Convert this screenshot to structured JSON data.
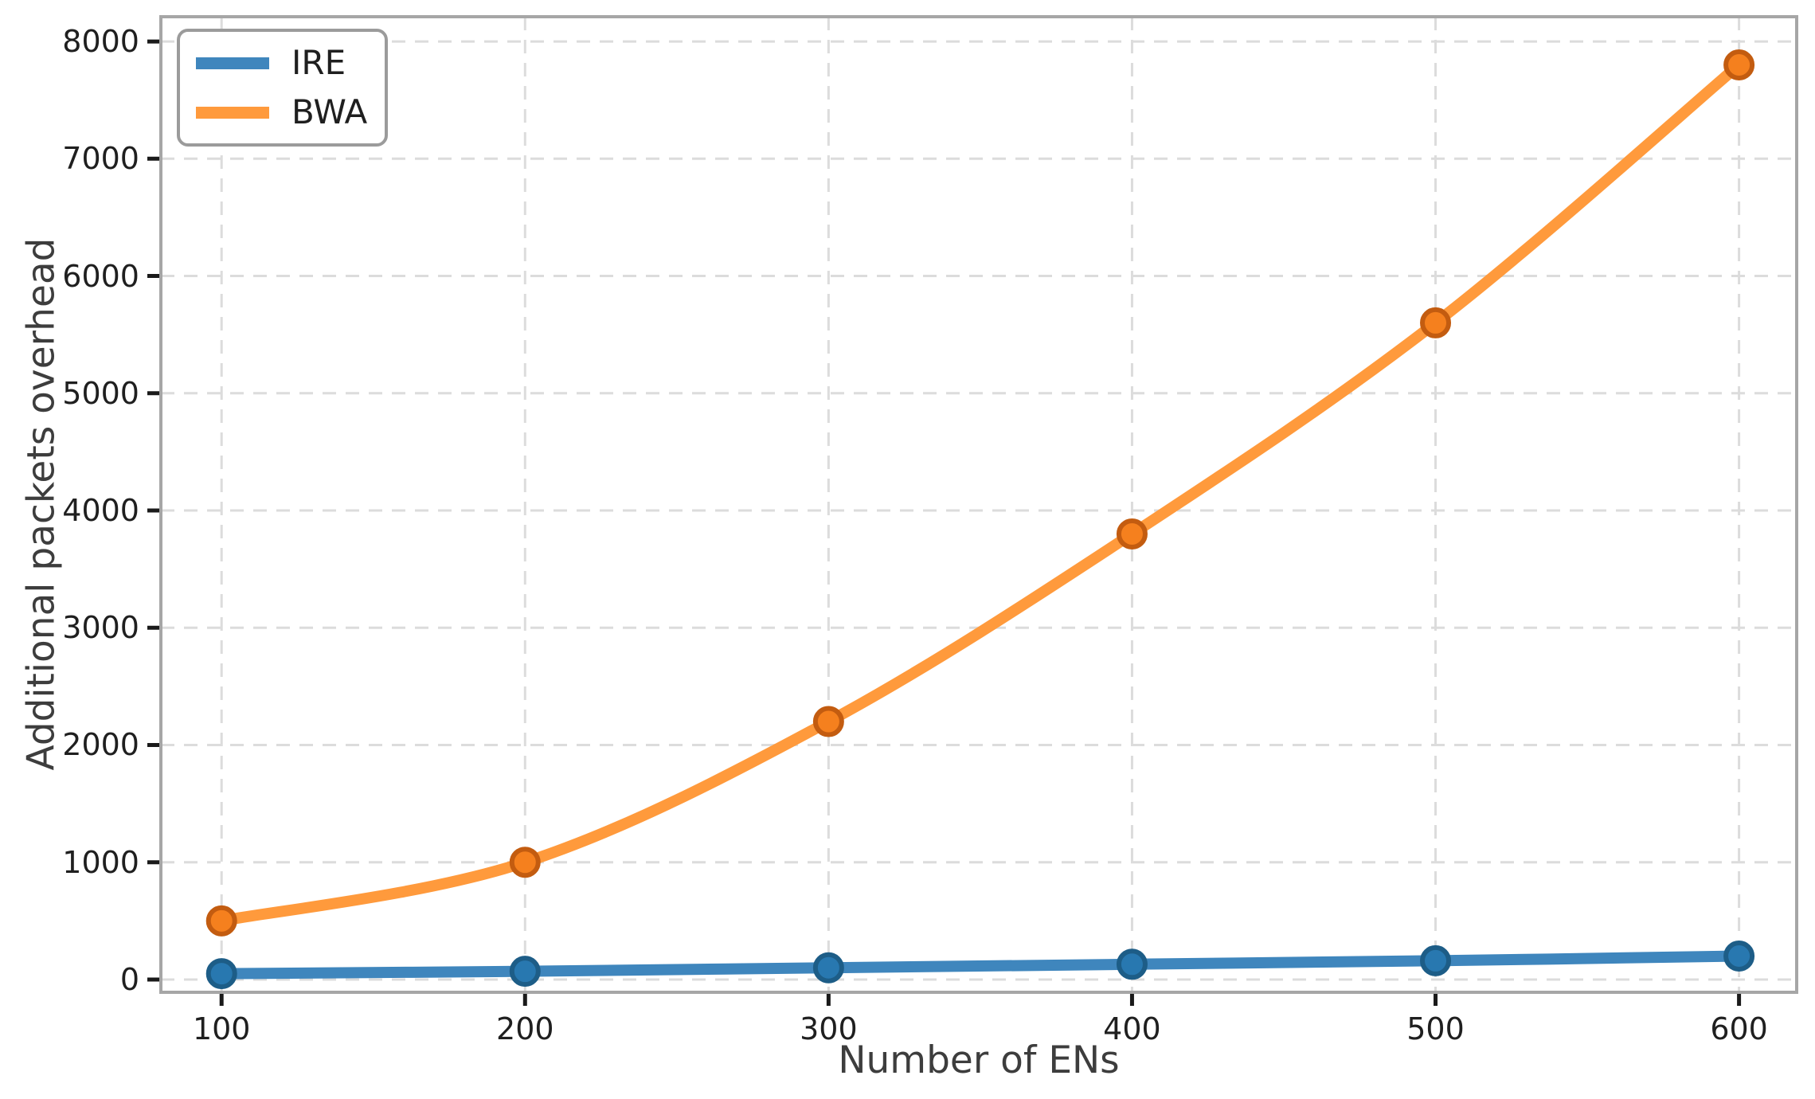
{
  "chart_data": {
    "type": "line",
    "title": "",
    "xlabel": "Number of ENs",
    "ylabel": "Additional packets overhead",
    "x": [
      100,
      200,
      300,
      400,
      500,
      600
    ],
    "series": [
      {
        "name": "IRE",
        "line_color": "#3f86bd",
        "marker_fill": "#2878b0",
        "marker_edge": "#1d5d87",
        "values": [
          50,
          70,
          100,
          130,
          160,
          200
        ]
      },
      {
        "name": "BWA",
        "line_color": "#ff9a3c",
        "marker_fill": "#f5801e",
        "marker_edge": "#c35c10",
        "values": [
          500,
          1000,
          2200,
          3800,
          5600,
          7800
        ]
      }
    ],
    "xticks": [
      100,
      200,
      300,
      400,
      500,
      600
    ],
    "yticks": [
      0,
      1000,
      2000,
      3000,
      4000,
      5000,
      6000,
      7000,
      8000
    ],
    "xlim": [
      80,
      619
    ],
    "ylim": [
      -109,
      8211
    ],
    "grid": true,
    "grid_color": "#dcdcdc",
    "spine_color": "#a6a6a6",
    "tick_color": "#1a1a1a",
    "legend_position": "upper left"
  }
}
